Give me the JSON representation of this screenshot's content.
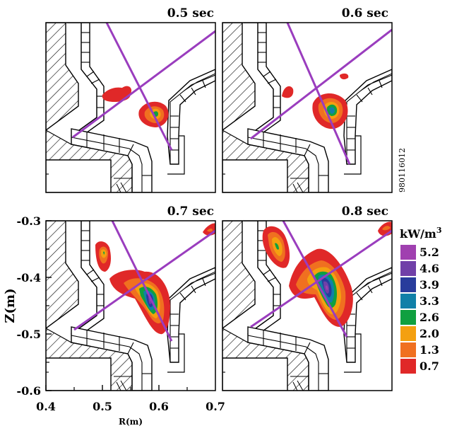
{
  "figure_id": "980116012",
  "panels": [
    {
      "title": "0.5 sec"
    },
    {
      "title": "0.6 sec"
    },
    {
      "title": "0.7 sec"
    },
    {
      "title": "0.8 sec"
    }
  ],
  "axes": {
    "xlabel": "R(m)",
    "ylabel": "Z(m)",
    "xticks": [
      "0.4",
      "0.5",
      "0.6",
      "0.7"
    ],
    "yticks": [
      "-0.3",
      "-0.4",
      "-0.5",
      "-0.6"
    ]
  },
  "legend": {
    "unit": "kW/m",
    "unit_sup": "3",
    "levels": [
      "5.2",
      "4.6",
      "3.9",
      "3.3",
      "2.6",
      "2.0",
      "1.3",
      "0.7"
    ],
    "colors": [
      "#a040b0",
      "#7040a8",
      "#283c9c",
      "#1080a8",
      "#10a040",
      "#f4a010",
      "#f07020",
      "#e02828"
    ]
  },
  "colors": {
    "line": "#9a3dbe",
    "frame": "#000000"
  },
  "chart_data": {
    "type": "heatmap",
    "xlabel": "R(m)",
    "ylabel": "Z(m)",
    "xlim": [
      0.4,
      0.7
    ],
    "ylim": [
      -0.6,
      -0.3
    ],
    "series": [
      {
        "name": "0.5 sec",
        "peak": 2.6
      },
      {
        "name": "0.6 sec",
        "peak": 3.3
      },
      {
        "name": "0.7 sec",
        "peak": 5.2
      },
      {
        "name": "0.8 sec",
        "peak": 5.2
      }
    ]
  }
}
